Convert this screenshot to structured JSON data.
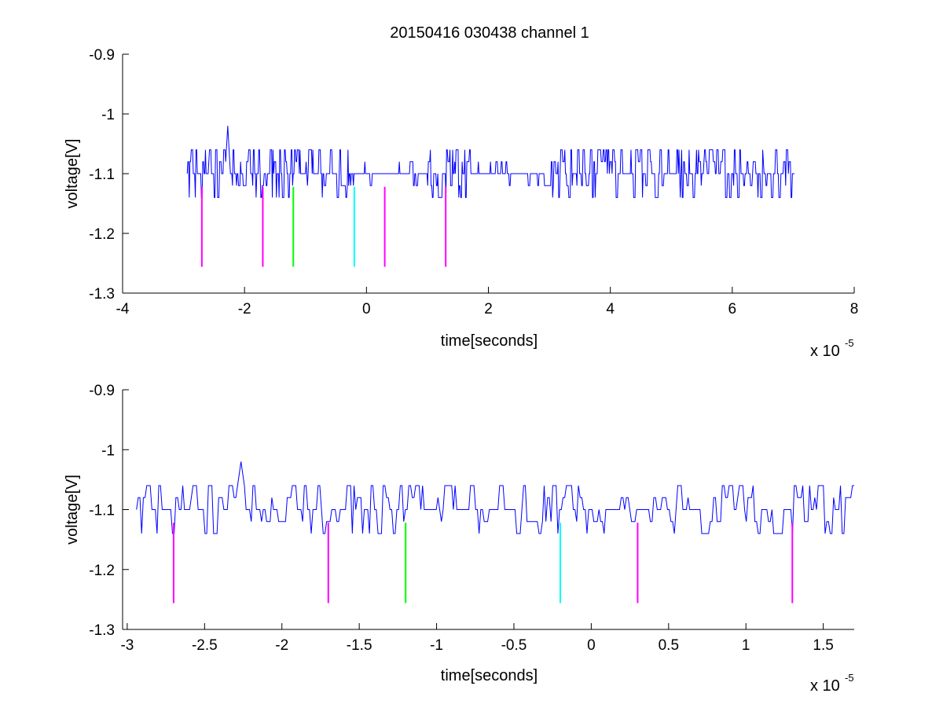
{
  "figure": {
    "title": "20150416 030438 channel 1"
  },
  "chart_data": [
    {
      "type": "line",
      "xlabel": "time[seconds]",
      "ylabel": "voltage[V]",
      "x_multiplier_label": "x 10",
      "x_multiplier_exponent": "-5",
      "x_scale": 1e-05,
      "xlim": [
        -4,
        8
      ],
      "ylim": [
        -1.3,
        -0.9
      ],
      "x_ticks": [
        -4,
        -2,
        0,
        2,
        4,
        6,
        8
      ],
      "x_tick_labels": [
        "-4",
        "-2",
        "0",
        "2",
        "4",
        "6",
        "8"
      ],
      "y_ticks": [
        -0.9,
        -1.0,
        -1.1,
        -1.2,
        -1.3
      ],
      "y_tick_labels": [
        "-0.9",
        "-1",
        "-1.1",
        "-1.2",
        "-1.3"
      ],
      "signal": {
        "color": "#0000ff",
        "x_start": -2.94,
        "x_end": 7.02,
        "baseline": -1.1,
        "levels": [
          -1.14,
          -1.12,
          -1.1,
          -1.08,
          -1.06
        ],
        "spike": {
          "x": -2.27,
          "y": -1.02
        },
        "quiet_intervals": [
          [
            -0.3,
            1.0
          ],
          [
            1.7,
            2.9
          ]
        ]
      },
      "markers": [
        {
          "x": -2.7,
          "y_top": -1.122,
          "y_bottom": -1.256,
          "color": "#ff00ff"
        },
        {
          "x": -1.7,
          "y_top": -1.122,
          "y_bottom": -1.256,
          "color": "#ff00ff"
        },
        {
          "x": -1.2,
          "y_top": -1.122,
          "y_bottom": -1.256,
          "color": "#00ff00"
        },
        {
          "x": -0.2,
          "y_top": -1.122,
          "y_bottom": -1.256,
          "color": "#00ffff"
        },
        {
          "x": 0.3,
          "y_top": -1.122,
          "y_bottom": -1.256,
          "color": "#ff00ff"
        },
        {
          "x": 1.3,
          "y_top": -1.122,
          "y_bottom": -1.256,
          "color": "#ff00ff"
        }
      ]
    },
    {
      "type": "line",
      "xlabel": "time[seconds]",
      "ylabel": "voltage[V]",
      "x_multiplier_label": "x 10",
      "x_multiplier_exponent": "-5",
      "x_scale": 1e-05,
      "xlim": [
        -3.03,
        1.7
      ],
      "ylim": [
        -1.3,
        -0.9
      ],
      "x_ticks": [
        -3,
        -2.5,
        -2,
        -1.5,
        -1,
        -0.5,
        0,
        0.5,
        1,
        1.5
      ],
      "x_tick_labels": [
        "-3",
        "-2.5",
        "-2",
        "-1.5",
        "-1",
        "-0.5",
        "0",
        "0.5",
        "1",
        "1.5"
      ],
      "y_ticks": [
        -0.9,
        -1.0,
        -1.1,
        -1.2,
        -1.3
      ],
      "y_tick_labels": [
        "-0.9",
        "-1",
        "-1.1",
        "-1.2",
        "-1.3"
      ],
      "signal": {
        "color": "#0000ff",
        "x_start": -2.94,
        "x_end": 1.7,
        "baseline": -1.1,
        "levels": [
          -1.14,
          -1.12,
          -1.1,
          -1.08,
          -1.06
        ],
        "spike": {
          "x": -2.27,
          "y": -1.02
        },
        "quiet_intervals": []
      },
      "markers": [
        {
          "x": -2.7,
          "y_top": -1.122,
          "y_bottom": -1.256,
          "color": "#ff00ff"
        },
        {
          "x": -1.7,
          "y_top": -1.122,
          "y_bottom": -1.256,
          "color": "#ff00ff"
        },
        {
          "x": -1.2,
          "y_top": -1.122,
          "y_bottom": -1.256,
          "color": "#00ff00"
        },
        {
          "x": -0.2,
          "y_top": -1.122,
          "y_bottom": -1.256,
          "color": "#00ffff"
        },
        {
          "x": 0.3,
          "y_top": -1.122,
          "y_bottom": -1.256,
          "color": "#ff00ff"
        },
        {
          "x": 1.3,
          "y_top": -1.122,
          "y_bottom": -1.256,
          "color": "#ff00ff"
        }
      ]
    }
  ]
}
